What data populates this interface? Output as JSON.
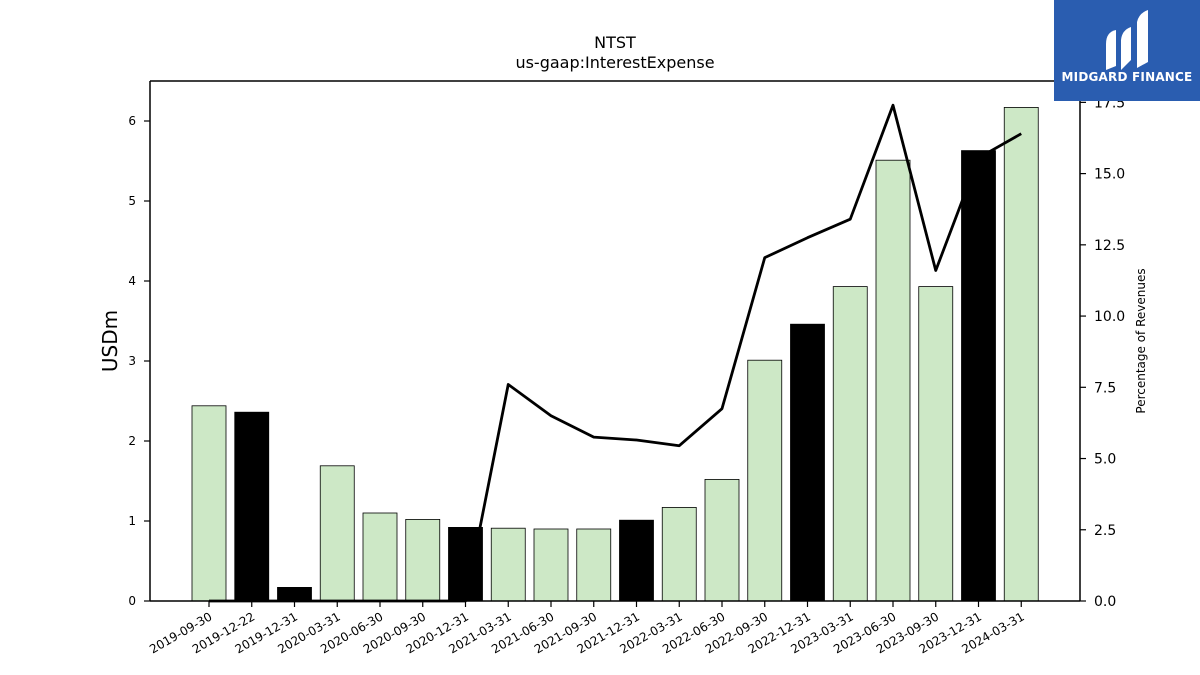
{
  "brand": {
    "name": "MIDGARD FINANCE",
    "color": "#2a5db0",
    "icon": "midgard-m-logo-icon"
  },
  "chart_data": {
    "type": "bar",
    "title": "NTST",
    "subtitle": "us-gaap:InterestExpense",
    "ylabel": "USDm",
    "y2label": "Percentage of Revenues",
    "ylim": [
      0,
      6.5
    ],
    "y2lim": [
      0,
      18.25
    ],
    "yticks": [
      0,
      1,
      2,
      3,
      4,
      5,
      6
    ],
    "y2ticks": [
      "0.0",
      "2.5",
      "5.0",
      "7.5",
      "10.0",
      "12.5",
      "15.0",
      "17.5"
    ],
    "grid": false,
    "categories": [
      "2019-09-30",
      "2019-12-22",
      "2019-12-31",
      "2020-03-31",
      "2020-06-30",
      "2020-09-30",
      "2020-12-31",
      "2021-03-31",
      "2021-06-30",
      "2021-09-30",
      "2021-12-31",
      "2022-03-31",
      "2022-06-30",
      "2022-09-30",
      "2022-12-31",
      "2023-03-31",
      "2023-06-30",
      "2023-09-30",
      "2023-12-31",
      "2024-03-31"
    ],
    "series": [
      {
        "kind": "bar",
        "values": [
          2.44,
          2.36,
          0.17,
          1.69,
          1.1,
          1.02,
          0.92,
          0.91,
          0.9,
          0.9,
          1.01,
          1.17,
          1.52,
          3.01,
          3.46,
          3.93,
          5.51,
          3.93,
          5.63,
          6.17
        ],
        "colors": [
          "#cde8c6",
          "#000000",
          "#000000",
          "#cde8c6",
          "#cde8c6",
          "#cde8c6",
          "#000000",
          "#cde8c6",
          "#cde8c6",
          "#cde8c6",
          "#000000",
          "#cde8c6",
          "#cde8c6",
          "#cde8c6",
          "#000000",
          "#cde8c6",
          "#cde8c6",
          "#cde8c6",
          "#000000",
          "#cde8c6"
        ]
      },
      {
        "kind": "line",
        "axis": "right",
        "color": "#000000",
        "values": [
          0.0,
          0.0,
          0.0,
          0.0,
          0.0,
          0.0,
          0.0,
          7.6,
          6.5,
          5.75,
          5.65,
          5.45,
          6.75,
          12.05,
          12.75,
          13.4,
          17.4,
          11.6,
          15.55,
          16.4
        ]
      }
    ]
  }
}
